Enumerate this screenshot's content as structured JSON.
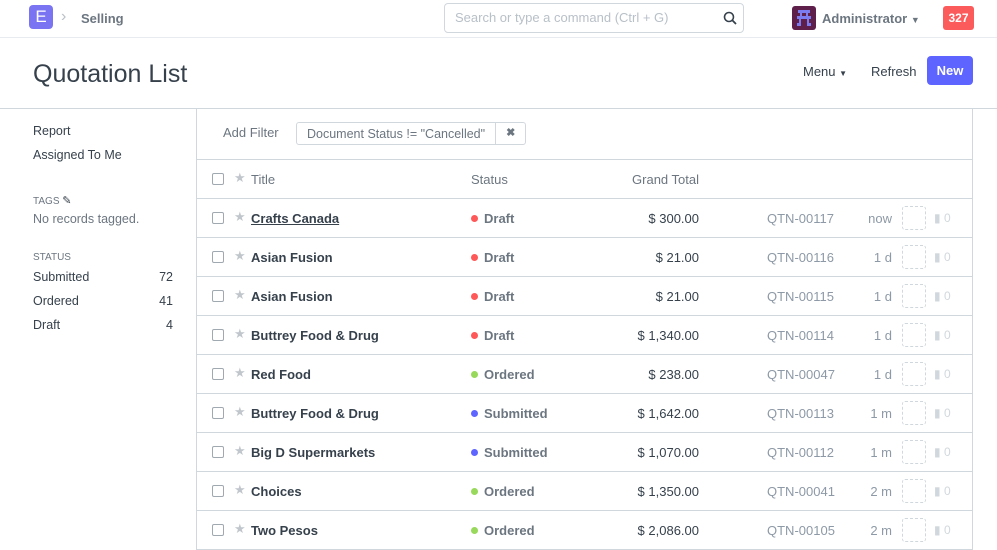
{
  "navbar": {
    "logo": "E",
    "breadcrumb": "Selling",
    "search_placeholder": "Search or type a command (Ctrl + G)",
    "user": "Administrator",
    "notifications": "327"
  },
  "page": {
    "title": "Quotation List",
    "menu": "Menu",
    "refresh": "Refresh",
    "new": "New"
  },
  "sidebar": {
    "links": [
      "Report",
      "Assigned To Me"
    ],
    "tags_label": "TAGS",
    "tags_empty": "No records tagged.",
    "status_label": "STATUS",
    "status": [
      {
        "label": "Submitted",
        "count": "72"
      },
      {
        "label": "Ordered",
        "count": "41"
      },
      {
        "label": "Draft",
        "count": "4"
      }
    ]
  },
  "filters": {
    "add": "Add Filter",
    "active": "Document Status != \"Cancelled\""
  },
  "columns": {
    "title": "Title",
    "status": "Status",
    "grand_total": "Grand Total"
  },
  "status_colors": {
    "Draft": "#ff5858",
    "Ordered": "#98d85b",
    "Submitted": "#5e64ff"
  },
  "rows": [
    {
      "title": "Crafts Canada",
      "status": "Draft",
      "total": "$ 300.00",
      "id": "QTN-00117",
      "time": "now",
      "comments": "0"
    },
    {
      "title": "Asian Fusion",
      "status": "Draft",
      "total": "$ 21.00",
      "id": "QTN-00116",
      "time": "1 d",
      "comments": "0"
    },
    {
      "title": "Asian Fusion",
      "status": "Draft",
      "total": "$ 21.00",
      "id": "QTN-00115",
      "time": "1 d",
      "comments": "0"
    },
    {
      "title": "Buttrey Food & Drug",
      "status": "Draft",
      "total": "$ 1,340.00",
      "id": "QTN-00114",
      "time": "1 d",
      "comments": "0"
    },
    {
      "title": "Red Food",
      "status": "Ordered",
      "total": "$ 238.00",
      "id": "QTN-00047",
      "time": "1 d",
      "comments": "0"
    },
    {
      "title": "Buttrey Food & Drug",
      "status": "Submitted",
      "total": "$ 1,642.00",
      "id": "QTN-00113",
      "time": "1 m",
      "comments": "0"
    },
    {
      "title": "Big D Supermarkets",
      "status": "Submitted",
      "total": "$ 1,070.00",
      "id": "QTN-00112",
      "time": "1 m",
      "comments": "0"
    },
    {
      "title": "Choices",
      "status": "Ordered",
      "total": "$ 1,350.00",
      "id": "QTN-00041",
      "time": "2 m",
      "comments": "0"
    },
    {
      "title": "Two Pesos",
      "status": "Ordered",
      "total": "$ 2,086.00",
      "id": "QTN-00105",
      "time": "2 m",
      "comments": "0"
    }
  ]
}
